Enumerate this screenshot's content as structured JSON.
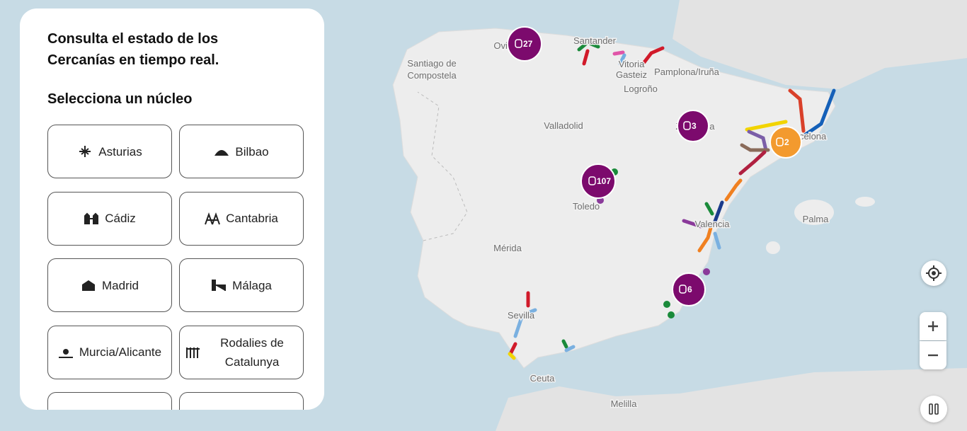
{
  "panel": {
    "heading": [
      "Consulta el estado de los",
      "Cercanías en tiempo real."
    ],
    "subheading": "Selecciona un núcleo",
    "nucleos": [
      "Asturias",
      "Bilbao",
      "Cádiz",
      "Cantabria",
      "Madrid",
      "Málaga",
      "Murcia/Alicante",
      "Rodalies de Catalunya"
    ]
  },
  "map": {
    "place_labels": [
      "Oviedo",
      "Santander",
      "Santiago de",
      "Compostela",
      "Vitoria",
      "Gasteiz",
      "Pamplona/Iruña",
      "Logroño",
      "Valladolid",
      "Zaragoza",
      "Barcelona",
      "Toledo",
      "Mérida",
      "Valencia",
      "Palma",
      "Sevilla",
      "Ceuta",
      "Melilla"
    ],
    "clusters": [
      27,
      3,
      107,
      2,
      6
    ]
  }
}
